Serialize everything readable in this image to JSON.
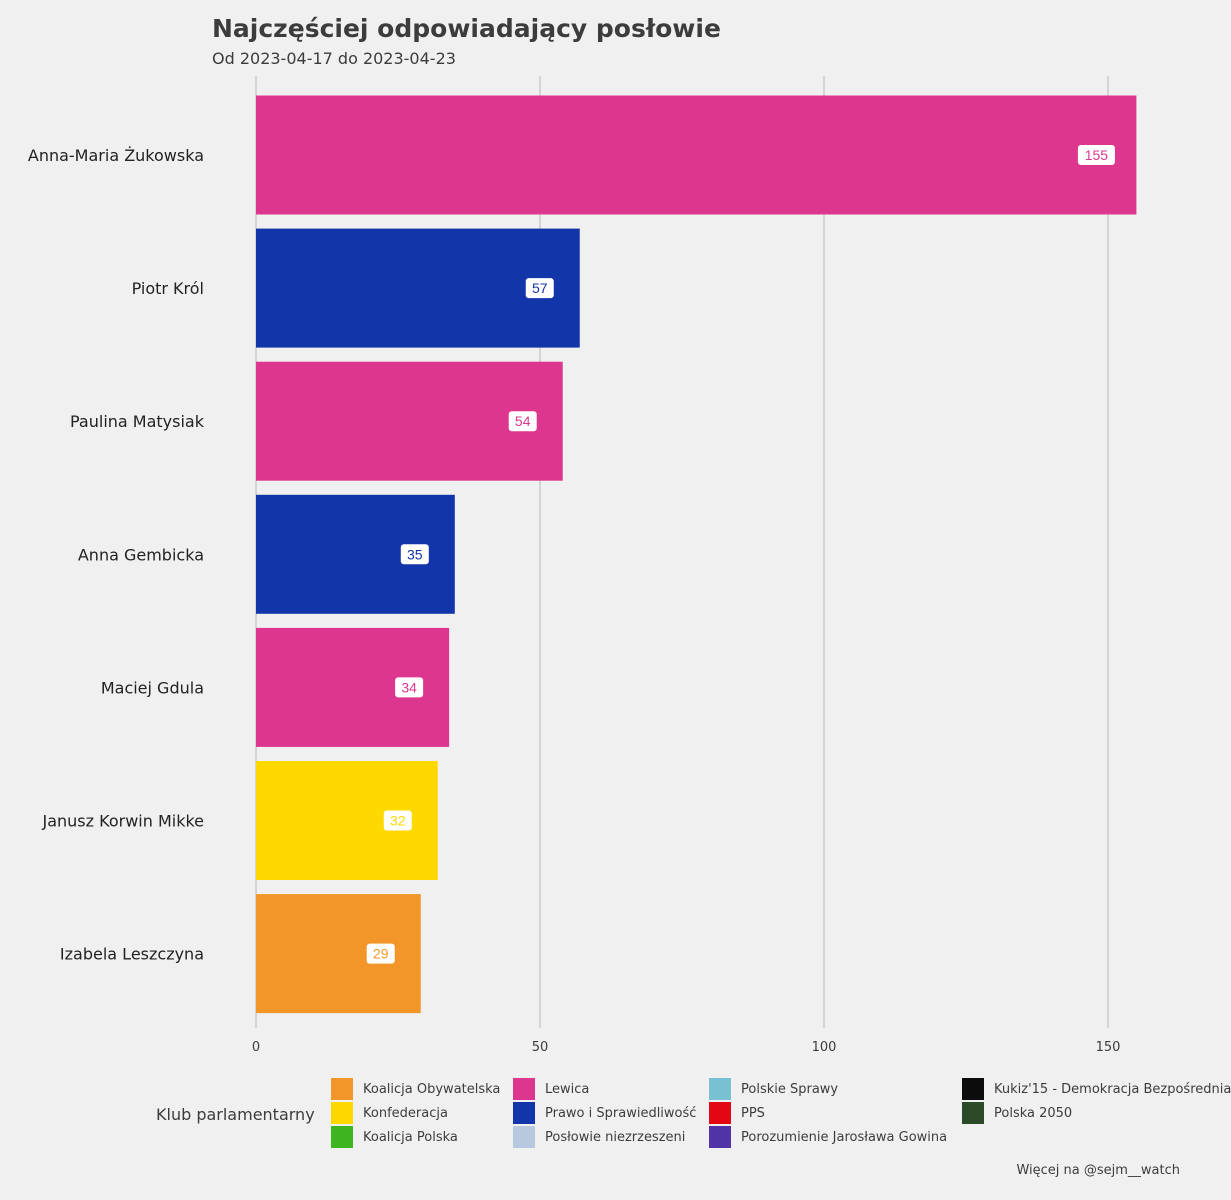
{
  "header": {
    "title": "Najczęściej odpowiadający posłowie",
    "subtitle": "Od 2023-04-17 do 2023-04-23"
  },
  "chart_data": {
    "type": "bar",
    "orientation": "horizontal",
    "title": "Najczęściej odpowiadający posłowie",
    "subtitle": "Od 2023-04-17 do 2023-04-23",
    "xlabel": "",
    "ylabel": "",
    "xlim": [
      0,
      155
    ],
    "x_ticks": [
      0,
      50,
      100,
      150
    ],
    "grid": "vertical",
    "categories": [
      "Anna-Maria Żukowska",
      "Piotr Król",
      "Paulina Matysiak",
      "Anna Gembicka",
      "Maciej Gdula",
      "Janusz Korwin Mikke",
      "Izabela Leszczyna"
    ],
    "values": [
      155,
      57,
      54,
      35,
      34,
      32,
      29
    ],
    "clubs": [
      "Lewica",
      "Prawo i Sprawiedliwość",
      "Lewica",
      "Prawo i Sprawiedliwość",
      "Lewica",
      "Konfederacja",
      "Koalicja Obywatelska"
    ],
    "legend_position": "bottom"
  },
  "legend": {
    "title": "Klub parlamentarny",
    "items": [
      {
        "label": "Koalicja Obywatelska",
        "color": "#f39629"
      },
      {
        "label": "Konfederacja",
        "color": "#ffd800"
      },
      {
        "label": "Koalicja Polska",
        "color": "#3cb521"
      },
      {
        "label": "Lewica",
        "color": "#dc368f"
      },
      {
        "label": "Prawo i Sprawiedliwość",
        "color": "#1235a9"
      },
      {
        "label": "Posłowie niezrzeszeni",
        "color": "#b8c8df"
      },
      {
        "label": "Polskie Sprawy",
        "color": "#78c1d2"
      },
      {
        "label": "PPS",
        "color": "#e30613"
      },
      {
        "label": "Porozumienie Jarosława Gowina",
        "color": "#5033a6"
      },
      {
        "label": "Kukiz'15 - Demokracja Bezpośrednia",
        "color": "#0c0c0c"
      },
      {
        "label": "Polska 2050",
        "color": "#2a4a28"
      }
    ]
  },
  "caption": "Więcej na @sejm__watch"
}
